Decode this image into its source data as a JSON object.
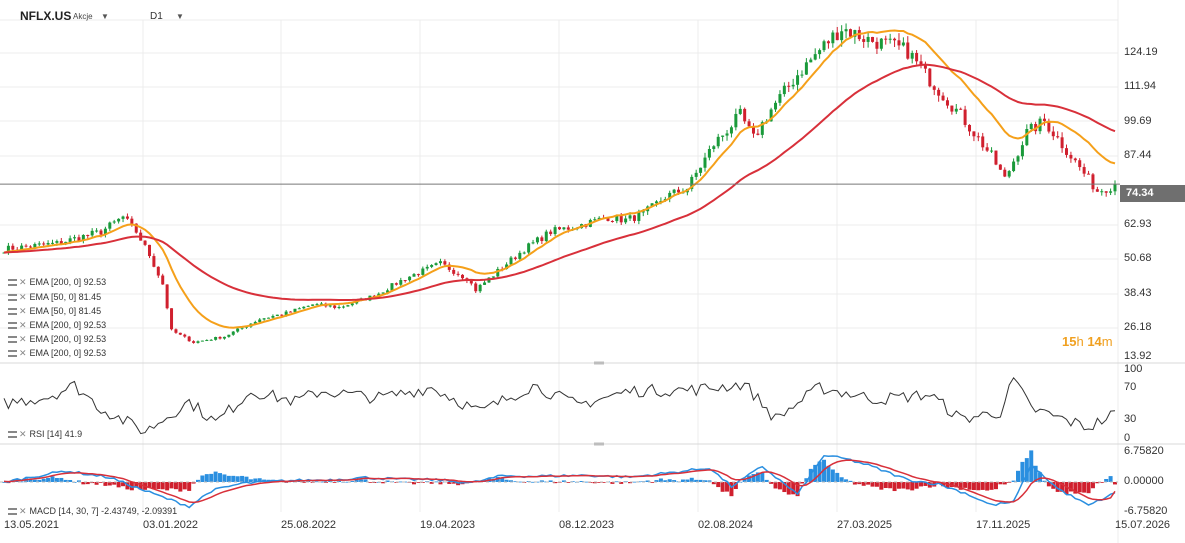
{
  "header": {
    "symbol": "NFLX.US",
    "asset_type": "Akcje",
    "timeframe": "D1"
  },
  "indicators": [
    {
      "label": "EMA [200, 0] 92.53"
    },
    {
      "label": "EMA [50, 0] 81.45"
    },
    {
      "label": "EMA [50, 0] 81.45"
    },
    {
      "label": "EMA [200, 0] 92.53"
    },
    {
      "label": "EMA [200, 0] 92.53"
    },
    {
      "label": "EMA [200, 0] 92.53"
    }
  ],
  "rsi_label": "RSI [14] 41.9",
  "macd_label": "MACD [14, 30, 7] -2.43749, -2.09391",
  "current_price": "74.34",
  "countdown": {
    "hours": "15",
    "h_unit": "h",
    "minutes": "14",
    "m_unit": "m"
  },
  "colors": {
    "up": "#1a9a3a",
    "down": "#d0202e",
    "ema50": "#f5a01a",
    "ema200": "#d8303a",
    "rsi_line": "#333333",
    "macd_line": "#2a8fe0",
    "signal_line": "#d8303a",
    "hist_pos": "#2a8fe0",
    "hist_neg": "#d0202e"
  },
  "chart_data": {
    "type": "candlestick",
    "x_tick_labels": [
      "13.05.2021",
      "03.01.2022",
      "25.08.2022",
      "19.04.2023",
      "08.12.2023",
      "02.08.2024",
      "27.03.2025",
      "17.11.2025",
      "15.07.2026"
    ],
    "price_axis": {
      "ticks": [
        124.19,
        111.94,
        99.69,
        87.44,
        74.34,
        62.93,
        50.68,
        38.43,
        26.18,
        13.92
      ],
      "range": [
        13.92,
        129
      ]
    },
    "rsi_axis": {
      "ticks": [
        100.0,
        70.0,
        30.0,
        0.0
      ],
      "range": [
        0,
        100
      ]
    },
    "macd_axis": {
      "ticks": [
        "6.75820",
        "0.00000",
        "-6.75820"
      ],
      "range": [
        -6.7582,
        6.7582
      ]
    },
    "last_price": 74.34,
    "rsi_last": 41.9,
    "macd_last": -2.43749,
    "signal_last": -2.09391,
    "ema200_last": 92.53,
    "ema50_last": 81.45,
    "price_path": [
      [
        0,
        52
      ],
      [
        12,
        54
      ],
      [
        22,
        58
      ],
      [
        27,
        63
      ],
      [
        30,
        58
      ],
      [
        33,
        50
      ],
      [
        36,
        40
      ],
      [
        38,
        24
      ],
      [
        43,
        20
      ],
      [
        50,
        22
      ],
      [
        58,
        28
      ],
      [
        64,
        30
      ],
      [
        70,
        33
      ],
      [
        76,
        32
      ],
      [
        84,
        36
      ],
      [
        91,
        42
      ],
      [
        99,
        47
      ],
      [
        105,
        42
      ],
      [
        107,
        38
      ],
      [
        114,
        47
      ],
      [
        118,
        52
      ],
      [
        124,
        58
      ],
      [
        130,
        60
      ],
      [
        137,
        63
      ],
      [
        141,
        62
      ],
      [
        145,
        64
      ],
      [
        150,
        70
      ],
      [
        155,
        73
      ],
      [
        161,
        88
      ],
      [
        167,
        98
      ],
      [
        170,
        90
      ],
      [
        174,
        100
      ],
      [
        180,
        112
      ],
      [
        186,
        122
      ],
      [
        190,
        128
      ],
      [
        196,
        124
      ],
      [
        201,
        122
      ],
      [
        205,
        120
      ],
      [
        209,
        112
      ],
      [
        217,
        98
      ],
      [
        224,
        84
      ],
      [
        227,
        76
      ],
      [
        232,
        92
      ],
      [
        236,
        96
      ],
      [
        240,
        88
      ],
      [
        244,
        80
      ],
      [
        248,
        72
      ],
      [
        252,
        74
      ]
    ],
    "rsi_path": [
      [
        0,
        52
      ],
      [
        10,
        62
      ],
      [
        16,
        78
      ],
      [
        22,
        45
      ],
      [
        32,
        12
      ],
      [
        42,
        55
      ],
      [
        48,
        25
      ],
      [
        56,
        70
      ],
      [
        66,
        55
      ],
      [
        72,
        70
      ],
      [
        85,
        60
      ],
      [
        97,
        75
      ],
      [
        108,
        40
      ],
      [
        120,
        78
      ],
      [
        130,
        50
      ],
      [
        142,
        70
      ],
      [
        157,
        72
      ],
      [
        168,
        80
      ],
      [
        175,
        30
      ],
      [
        185,
        75
      ],
      [
        198,
        58
      ],
      [
        210,
        65
      ],
      [
        217,
        30
      ],
      [
        226,
        40
      ],
      [
        229,
        86
      ],
      [
        233,
        45
      ],
      [
        240,
        30
      ],
      [
        246,
        18
      ],
      [
        252,
        38
      ]
    ],
    "macd_path": [
      [
        0,
        0
      ],
      [
        14,
        2.5
      ],
      [
        24,
        1
      ],
      [
        32,
        -2
      ],
      [
        42,
        -5.5
      ],
      [
        47,
        -2
      ],
      [
        54,
        -0.3
      ],
      [
        64,
        0.3
      ],
      [
        74,
        0.5
      ],
      [
        82,
        1
      ],
      [
        90,
        0.6
      ],
      [
        98,
        0.5
      ],
      [
        106,
        -0.2
      ],
      [
        113,
        1.4
      ],
      [
        120,
        1.3
      ],
      [
        132,
        1.5
      ],
      [
        142,
        1.1
      ],
      [
        153,
        2.3
      ],
      [
        160,
        3.2
      ],
      [
        165,
        -1
      ],
      [
        172,
        3.5
      ],
      [
        180,
        -2.8
      ],
      [
        186,
        6
      ],
      [
        191,
        5.2
      ],
      [
        196,
        3.8
      ],
      [
        205,
        0.5
      ],
      [
        212,
        -0.5
      ],
      [
        218,
        -2.5
      ],
      [
        224,
        -5.2
      ],
      [
        229,
        -4.5
      ],
      [
        233,
        3.8
      ],
      [
        239,
        -1.5
      ],
      [
        246,
        -5.3
      ],
      [
        252,
        -2.5
      ]
    ]
  }
}
